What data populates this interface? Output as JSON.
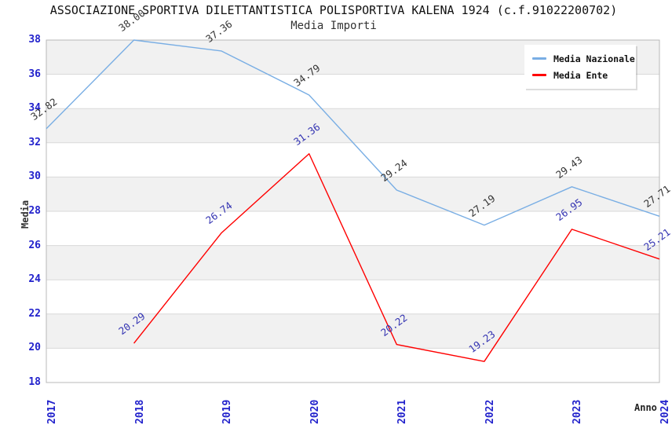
{
  "title": "ASSOCIAZIONE SPORTIVA DILETTANTISTICA POLISPORTIVA KALENA 1924 (c.f.91022200702)",
  "subtitle": "Media Importi",
  "chart_data": {
    "type": "line",
    "x": [
      2017,
      2018,
      2019,
      2020,
      2021,
      2022,
      2023,
      2024
    ],
    "xlabel": "Anno",
    "ylabel": "Media",
    "ylim": [
      18,
      38
    ],
    "ytick_step": 2,
    "grid": "horizontal-bands-alternating",
    "legend_position": "top-right",
    "series": [
      {
        "name": "Media Nazionale",
        "color": "#79AEE4",
        "label_color": "#333333",
        "values": [
          32.82,
          38.0,
          37.36,
          34.79,
          29.24,
          27.19,
          29.43,
          27.71
        ]
      },
      {
        "name": "Media Ente",
        "color": "#FF0000",
        "label_color": "#3333B2",
        "values": [
          null,
          20.29,
          26.74,
          31.36,
          20.22,
          19.23,
          26.95,
          25.21
        ]
      }
    ],
    "palette": {
      "tick_label_color": "#2222CC",
      "band_fill": "#F1F1F1",
      "gridline_color": "#D9D9D9",
      "plot_border_color": "#B8B8B8",
      "title_color": "#111111",
      "background": "#FFFFFF"
    }
  }
}
